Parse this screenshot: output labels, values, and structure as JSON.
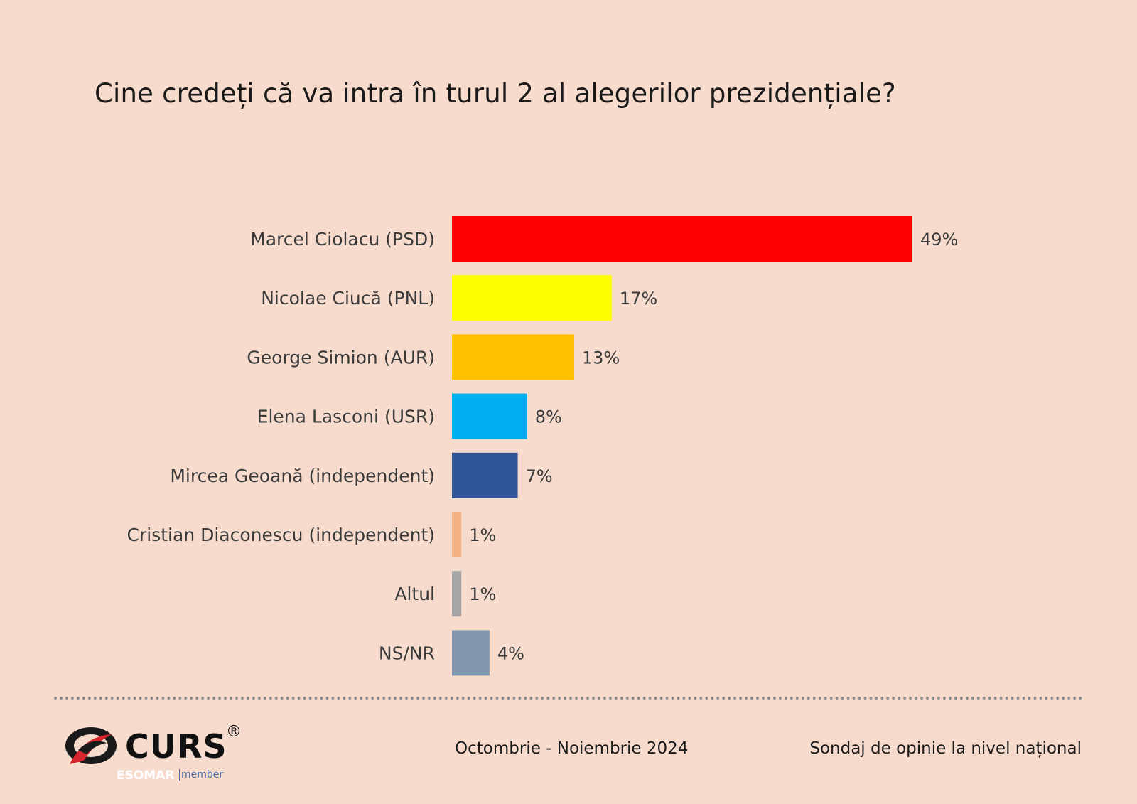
{
  "title": "Cine credeți că va intra în turul 2 al alegerilor prezidențiale?",
  "chart_data": {
    "type": "bar",
    "orientation": "horizontal",
    "title": "Cine credeți că va intra în turul 2 al alegerilor prezidențiale?",
    "categories": [
      "Marcel Ciolacu (PSD)",
      "Nicolae Ciucă (PNL)",
      "George Simion (AUR)",
      "Elena Lasconi (USR)",
      "Mircea Geoană (independent)",
      "Cristian Diaconescu (independent)",
      "Altul",
      "NS/NR"
    ],
    "values": [
      49,
      17,
      13,
      8,
      7,
      1,
      1,
      4
    ],
    "value_labels": [
      "49%",
      "17%",
      "13%",
      "8%",
      "7%",
      "1%",
      "1%",
      "4%"
    ],
    "colors": [
      "#ff0000",
      "#ffff00",
      "#ffc000",
      "#00b0f0",
      "#2f5597",
      "#f4b183",
      "#a6a6a6",
      "#8497b0"
    ],
    "xlim": [
      0,
      49
    ],
    "grid": false,
    "legend": "none"
  },
  "footer": {
    "period": "Octombrie - Noiembrie 2024",
    "scope": "Sondaj de opinie la nivel național"
  },
  "logo": {
    "word": "CURS",
    "registered": "®",
    "esomar": "ESOMAR",
    "member": "member"
  }
}
